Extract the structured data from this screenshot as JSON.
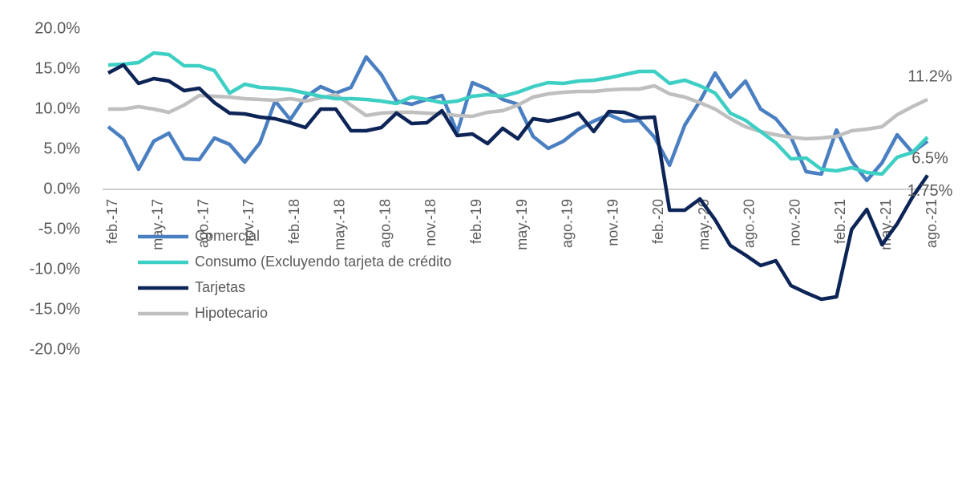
{
  "chart_data": {
    "type": "line",
    "categories": [
      "feb.-17",
      null,
      null,
      "may.-17",
      null,
      null,
      "ago.-17",
      null,
      null,
      "nov.-17",
      null,
      null,
      "feb.-18",
      null,
      null,
      "may.-18",
      null,
      null,
      "ago.-18",
      null,
      null,
      "nov.-18",
      null,
      null,
      "feb.-19",
      null,
      null,
      "may.-19",
      null,
      null,
      "ago.-19",
      null,
      null,
      "nov.-19",
      null,
      null,
      "feb.-20",
      null,
      null,
      "may.-20",
      null,
      null,
      "ago.-20",
      null,
      null,
      "nov.-20",
      null,
      null,
      "feb.-21",
      null,
      null,
      "may.-21",
      null,
      null,
      "ago.-21"
    ],
    "series": [
      {
        "name": "Comercial",
        "color": "#4a7fc1",
        "values": [
          7.8,
          6.3,
          2.5,
          6.0,
          7.0,
          3.8,
          3.7,
          6.4,
          5.6,
          3.4,
          5.8,
          11.0,
          8.7,
          11.5,
          12.8,
          12.0,
          12.7,
          16.5,
          14.3,
          11.0,
          10.6,
          11.2,
          11.7,
          7.1,
          13.3,
          12.5,
          11.2,
          10.6,
          6.6,
          5.1,
          6.0,
          7.5,
          8.5,
          9.3,
          8.5,
          8.6,
          6.5,
          3.0,
          8.0,
          11.0,
          14.5,
          11.5,
          13.5,
          10.0,
          8.8,
          6.5,
          2.2,
          1.9,
          7.4,
          3.5,
          1.1,
          3.3,
          6.8,
          4.6,
          6.0
        ]
      },
      {
        "name": "Consumo (Excluyendo tarjeta de crédito",
        "color": "#3ecfc4",
        "end_label": "6.5%",
        "values": [
          15.5,
          15.6,
          15.8,
          17.0,
          16.8,
          15.4,
          15.4,
          14.8,
          12.0,
          13.1,
          12.7,
          12.6,
          12.4,
          12.0,
          11.6,
          11.3,
          11.3,
          11.2,
          11.0,
          10.7,
          11.5,
          11.2,
          10.8,
          11.0,
          11.6,
          11.8,
          11.6,
          12.1,
          12.8,
          13.3,
          13.2,
          13.5,
          13.6,
          13.9,
          14.3,
          14.7,
          14.7,
          13.2,
          13.6,
          12.9,
          12.0,
          9.5,
          8.6,
          7.2,
          5.8,
          3.8,
          3.9,
          2.5,
          2.3,
          2.7,
          2.1,
          1.9,
          4.0,
          4.6,
          6.5
        ]
      },
      {
        "name": "Tarjetas",
        "color": "#0d2456",
        "end_label": "1.75%",
        "values": [
          14.5,
          15.5,
          13.2,
          13.8,
          13.5,
          12.3,
          12.6,
          10.8,
          9.5,
          9.4,
          9.0,
          8.8,
          8.3,
          7.7,
          10.0,
          10.0,
          7.3,
          7.3,
          7.7,
          9.5,
          8.2,
          8.3,
          9.8,
          6.7,
          6.9,
          5.7,
          7.6,
          6.3,
          8.8,
          8.5,
          8.9,
          9.5,
          7.2,
          9.7,
          9.6,
          8.9,
          9.0,
          -2.6,
          -2.6,
          -1.2,
          -3.8,
          -7.0,
          -8.2,
          -9.5,
          -8.9,
          -12.0,
          -12.9,
          -13.7,
          -13.4,
          -5.0,
          -2.5,
          -6.9,
          -4.3,
          -1.0,
          1.75
        ]
      },
      {
        "name": "Hipotecario",
        "color": "#bfbfbf",
        "end_label": "11.2%",
        "values": [
          10.0,
          10.0,
          10.3,
          10.0,
          9.6,
          10.5,
          11.7,
          11.6,
          11.5,
          11.3,
          11.2,
          11.1,
          11.3,
          11.0,
          11.4,
          11.8,
          10.5,
          9.2,
          9.5,
          9.6,
          9.6,
          9.5,
          9.4,
          9.2,
          9.1,
          9.6,
          9.8,
          10.5,
          11.5,
          11.9,
          12.1,
          12.2,
          12.2,
          12.4,
          12.5,
          12.5,
          12.9,
          11.9,
          11.5,
          10.8,
          10.0,
          8.8,
          7.8,
          7.2,
          6.8,
          6.5,
          6.3,
          6.4,
          6.6,
          7.3,
          7.5,
          7.8,
          9.3,
          10.3,
          11.2
        ]
      }
    ],
    "ylim": [
      -20,
      20
    ],
    "yticks": [
      {
        "value": -20,
        "label": "-20.0%"
      },
      {
        "value": -15,
        "label": "-15.0%"
      },
      {
        "value": -10,
        "label": "-10.0%"
      },
      {
        "value": -5,
        "label": "-5.0%"
      },
      {
        "value": 0,
        "label": "0.0%"
      },
      {
        "value": 5,
        "label": "5.0%"
      },
      {
        "value": 10,
        "label": "10.0%"
      },
      {
        "value": 15,
        "label": "15.0%"
      },
      {
        "value": 20,
        "label": "20.0%"
      }
    ],
    "grid": false,
    "legend": "left"
  }
}
